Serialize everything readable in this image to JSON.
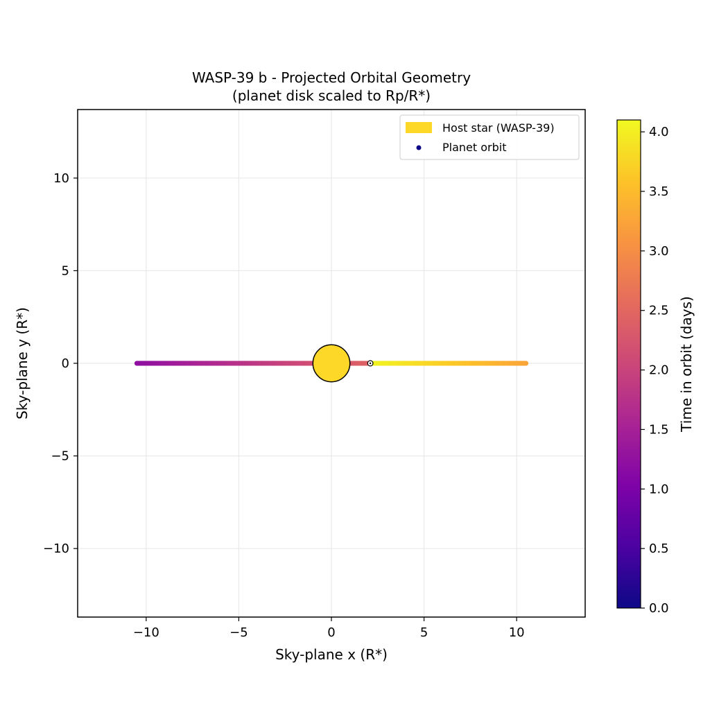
{
  "chart_data": {
    "type": "scatter",
    "title": "WASP-39 b - Projected Orbital Geometry",
    "subtitle": "(planet disk scaled to Rp/R*)",
    "xlabel": "Sky-plane x (R*)",
    "ylabel": "Sky-plane y (R*)",
    "xlim": [
      -13.7,
      13.7
    ],
    "ylim": [
      -13.7,
      13.7
    ],
    "xticks": [
      -10,
      -5,
      0,
      5,
      10
    ],
    "yticks": [
      -10,
      -5,
      0,
      5,
      10
    ],
    "xtick_labels": [
      "−10",
      "−5",
      "0",
      "5",
      "10"
    ],
    "ytick_labels": [
      "−10",
      "−5",
      "0",
      "5",
      "10"
    ],
    "grid": true,
    "legend": {
      "placement": "upper right",
      "entries": [
        {
          "label": "Host star (WASP-39)",
          "color": "#fdd828",
          "marker": "patch"
        },
        {
          "label": "Planet orbit",
          "color": "#0d0887",
          "marker": "dot"
        }
      ]
    },
    "star": {
      "x": 0,
      "y": 0,
      "radius": 1.0,
      "color": "#fdd828",
      "edge_color": "#000000"
    },
    "planet": {
      "x": 2.1,
      "y": 0.0,
      "radius": 0.145
    },
    "orbit": {
      "period_days": 4.055,
      "x_at_start": 2.1,
      "x_min": -10.5,
      "x_max": 10.5,
      "y": 0.0,
      "time_range_days": [
        0,
        4.055
      ]
    },
    "colorbar": {
      "label": "Time in orbit (days)",
      "colormap": "plasma",
      "range": [
        0.0,
        4.1
      ],
      "ticks": [
        0.0,
        0.5,
        1.0,
        1.5,
        2.0,
        2.5,
        3.0,
        3.5,
        4.0
      ],
      "tick_labels": [
        "0.0",
        "0.5",
        "1.0",
        "1.5",
        "2.0",
        "2.5",
        "3.0",
        "3.5",
        "4.0"
      ]
    }
  }
}
